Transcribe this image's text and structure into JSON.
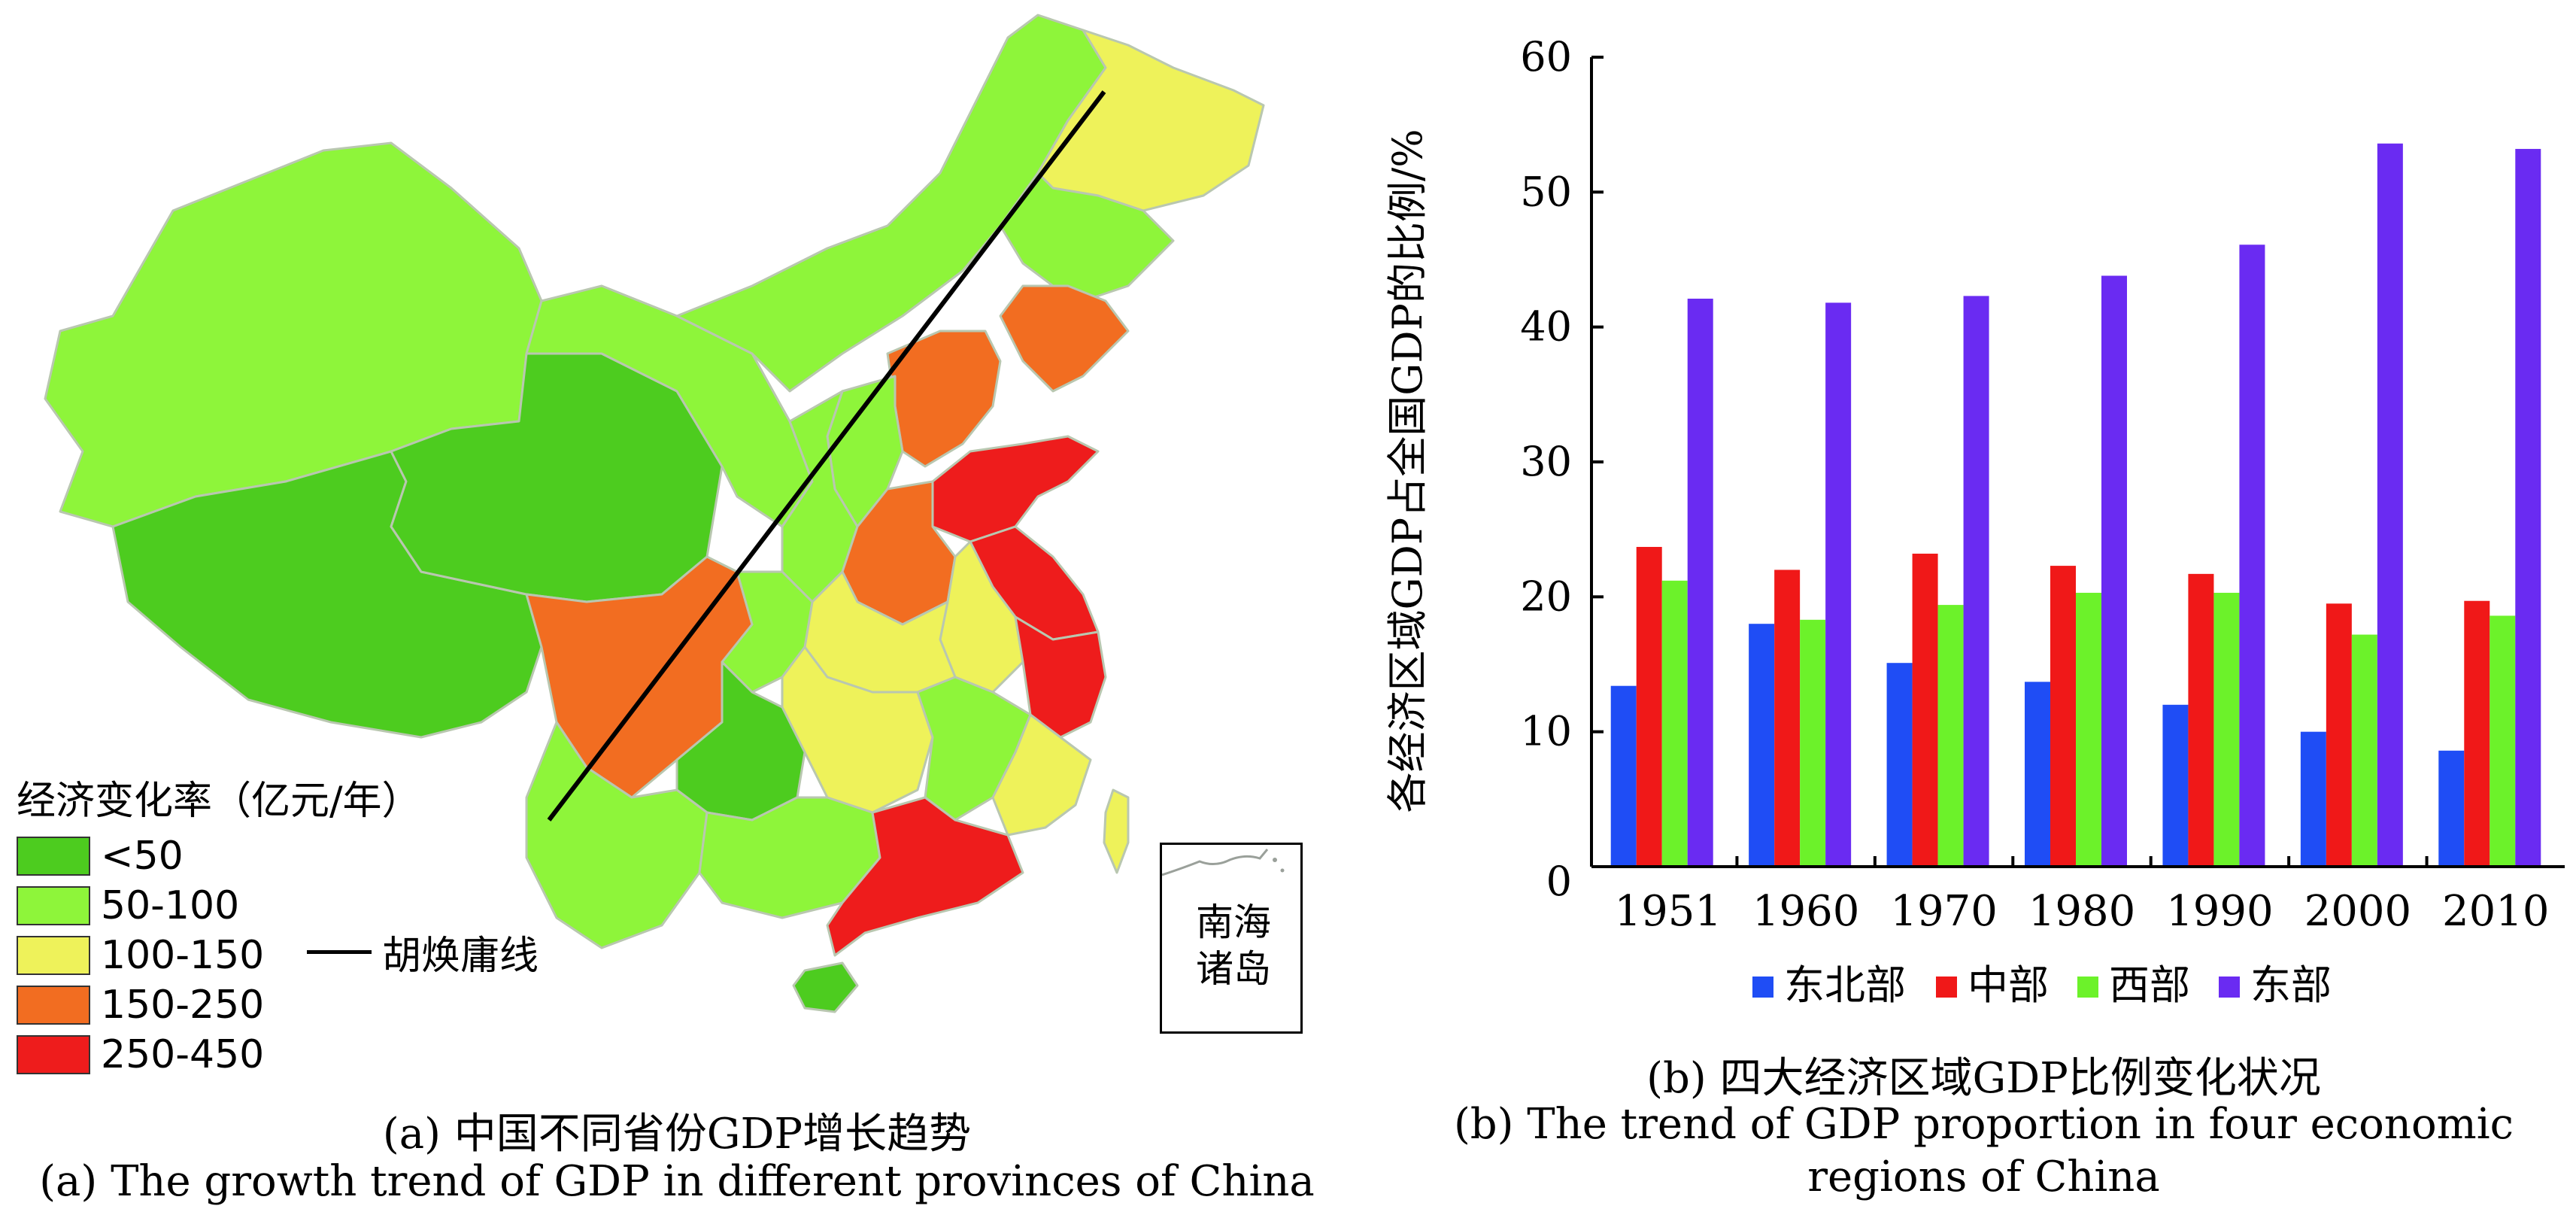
{
  "map": {
    "legend_title": "经济变化率（亿元/年）",
    "legend": [
      {
        "label": "<50",
        "color": "#4dcc1f"
      },
      {
        "label": "50-100",
        "color": "#8ef53a"
      },
      {
        "label": "100-150",
        "color": "#eef25a"
      },
      {
        "label": "150-250",
        "color": "#f26d21"
      },
      {
        "label": "250-450",
        "color": "#ee1c1c"
      }
    ],
    "line_label": "胡焕庸线",
    "inset_label_1": "南海",
    "inset_label_2": "诸岛",
    "caption_zh": "(a) 中国不同省份GDP增长趋势",
    "caption_en": "(a) The growth trend of GDP in different provinces of China"
  },
  "chart_data": {
    "type": "bar",
    "categories": [
      "1951",
      "1960",
      "1970",
      "1980",
      "1990",
      "2000",
      "2010"
    ],
    "series": [
      {
        "name": "东北部",
        "color": "#1f4df5",
        "values": [
          13.4,
          18.0,
          15.1,
          13.7,
          12.0,
          10.0,
          8.6
        ]
      },
      {
        "name": "中部",
        "color": "#f01818",
        "values": [
          23.7,
          22.0,
          23.2,
          22.3,
          21.7,
          19.5,
          19.7
        ]
      },
      {
        "name": "西部",
        "color": "#6cf22a",
        "values": [
          21.2,
          18.3,
          19.4,
          20.3,
          20.3,
          17.2,
          18.6
        ]
      },
      {
        "name": "东部",
        "color": "#6a2bf2",
        "values": [
          42.1,
          41.8,
          42.3,
          43.8,
          46.1,
          53.6,
          53.2
        ]
      }
    ],
    "ylabel": "各经济区域GDP占全国GDP的比例/%",
    "yticks": [
      "0",
      "10",
      "20",
      "30",
      "40",
      "50",
      "60"
    ],
    "ylim": [
      0,
      60
    ],
    "title": "(b) 四大经济区域GDP比例变化状况",
    "caption_en_1": "(b) The trend of GDP proportion in four economic",
    "caption_en_2": "regions of China"
  }
}
